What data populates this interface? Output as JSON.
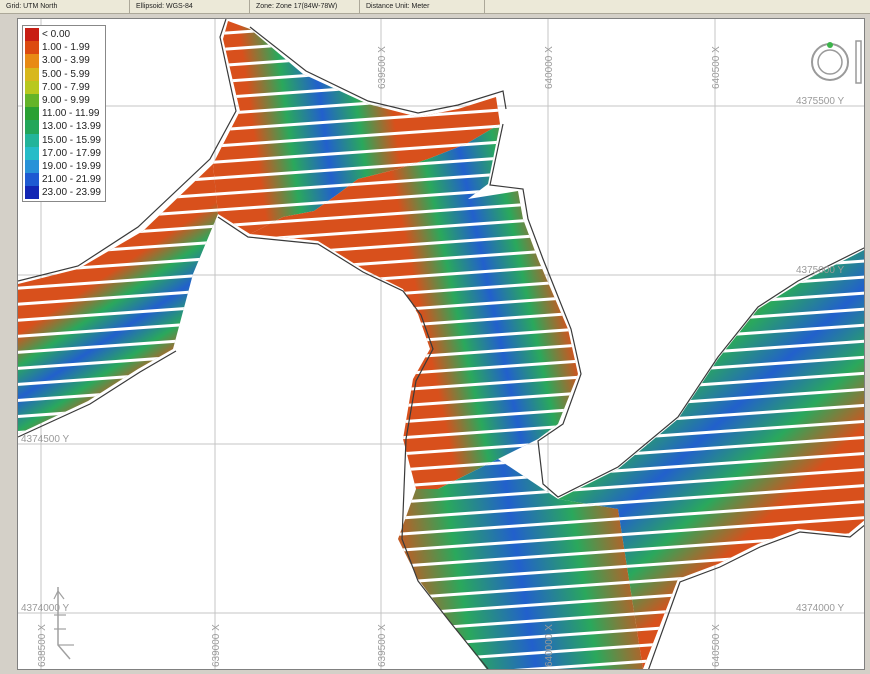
{
  "status_bar": {
    "grid": "Grid: UTM North",
    "ellipsoid": "Ellipsoid: WGS-84",
    "zone": "Zone: Zone 17(84W-78W)",
    "distance_unit": "Distance Unit: Meter"
  },
  "legend": {
    "items": [
      {
        "label": "< 0.00",
        "color": "#c81e14"
      },
      {
        "label": "1.00 - 1.99",
        "color": "#dc4a10"
      },
      {
        "label": "3.00 - 3.99",
        "color": "#e88a14"
      },
      {
        "label": "5.00 - 5.99",
        "color": "#d8b81c"
      },
      {
        "label": "7.00 - 7.99",
        "color": "#b8c81e"
      },
      {
        "label": "9.00 - 9.99",
        "color": "#64b428"
      },
      {
        "label": "11.00 - 11.99",
        "color": "#2aa032"
      },
      {
        "label": "13.00 - 13.99",
        "color": "#22a65a"
      },
      {
        "label": "15.00 - 15.99",
        "color": "#22b49a"
      },
      {
        "label": "17.00 - 17.99",
        "color": "#26bcc8"
      },
      {
        "label": "19.00 - 19.99",
        "color": "#2892d8"
      },
      {
        "label": "21.00 - 21.99",
        "color": "#1e5ad2"
      },
      {
        "label": "23.00 - 23.99",
        "color": "#1226b4"
      }
    ]
  },
  "grid_labels": {
    "x": [
      "638500 X",
      "639000 X",
      "639500 X",
      "640000 X",
      "640500 X"
    ],
    "y": [
      "4375500 Y",
      "4375000 Y",
      "4374500 Y",
      "4374000 Y"
    ]
  },
  "colors": {
    "shoreline": "#3a3a3a",
    "survey_line_gap": "#ffffff",
    "edge": "#d8501c",
    "mid": "#2aa85c",
    "deep": "#2260cc"
  },
  "icons": {
    "north_arrow": "north-arrow-icon",
    "scale": "scale-bar-icon"
  }
}
